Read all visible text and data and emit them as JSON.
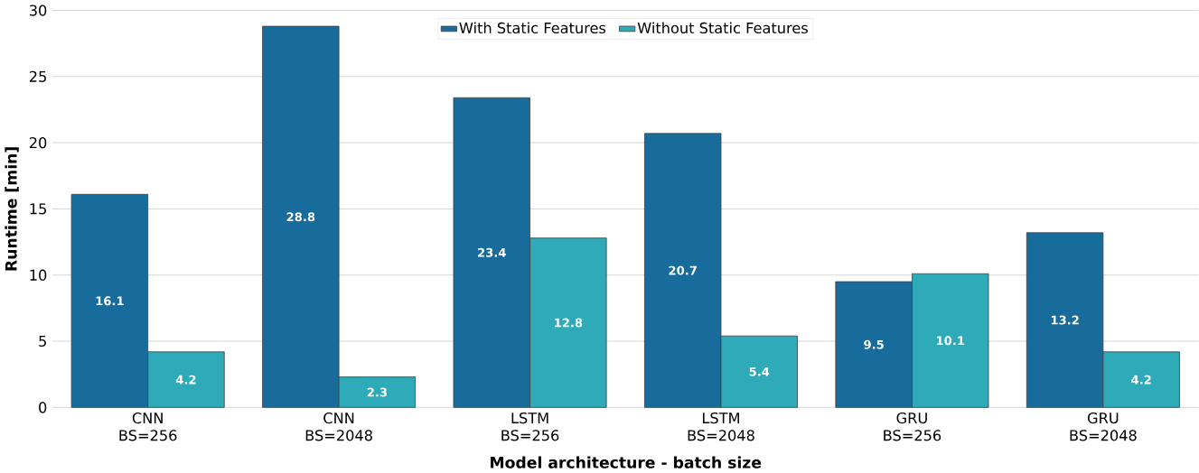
{
  "chart_data": {
    "type": "bar",
    "xlabel": "Model architecture - batch size",
    "ylabel": "Runtime [min]",
    "categories": [
      "CNN BS=256",
      "CNN BS=2048",
      "LSTM BS=256",
      "LSTM BS=2048",
      "GRU BS=256",
      "GRU BS=2048"
    ],
    "series": [
      {
        "name": "With Static Features",
        "color": "#186c9c",
        "values": [
          16.1,
          28.8,
          23.4,
          20.7,
          9.5,
          13.2
        ]
      },
      {
        "name": "Without Static Features",
        "color": "#2eaab9",
        "values": [
          4.2,
          2.3,
          12.8,
          5.4,
          10.1,
          4.2
        ]
      }
    ],
    "ylim": [
      0,
      30
    ],
    "yticks": [
      0,
      5,
      10,
      15,
      20,
      25,
      30
    ],
    "grid": "y",
    "legend": "top",
    "data_labels": true
  }
}
